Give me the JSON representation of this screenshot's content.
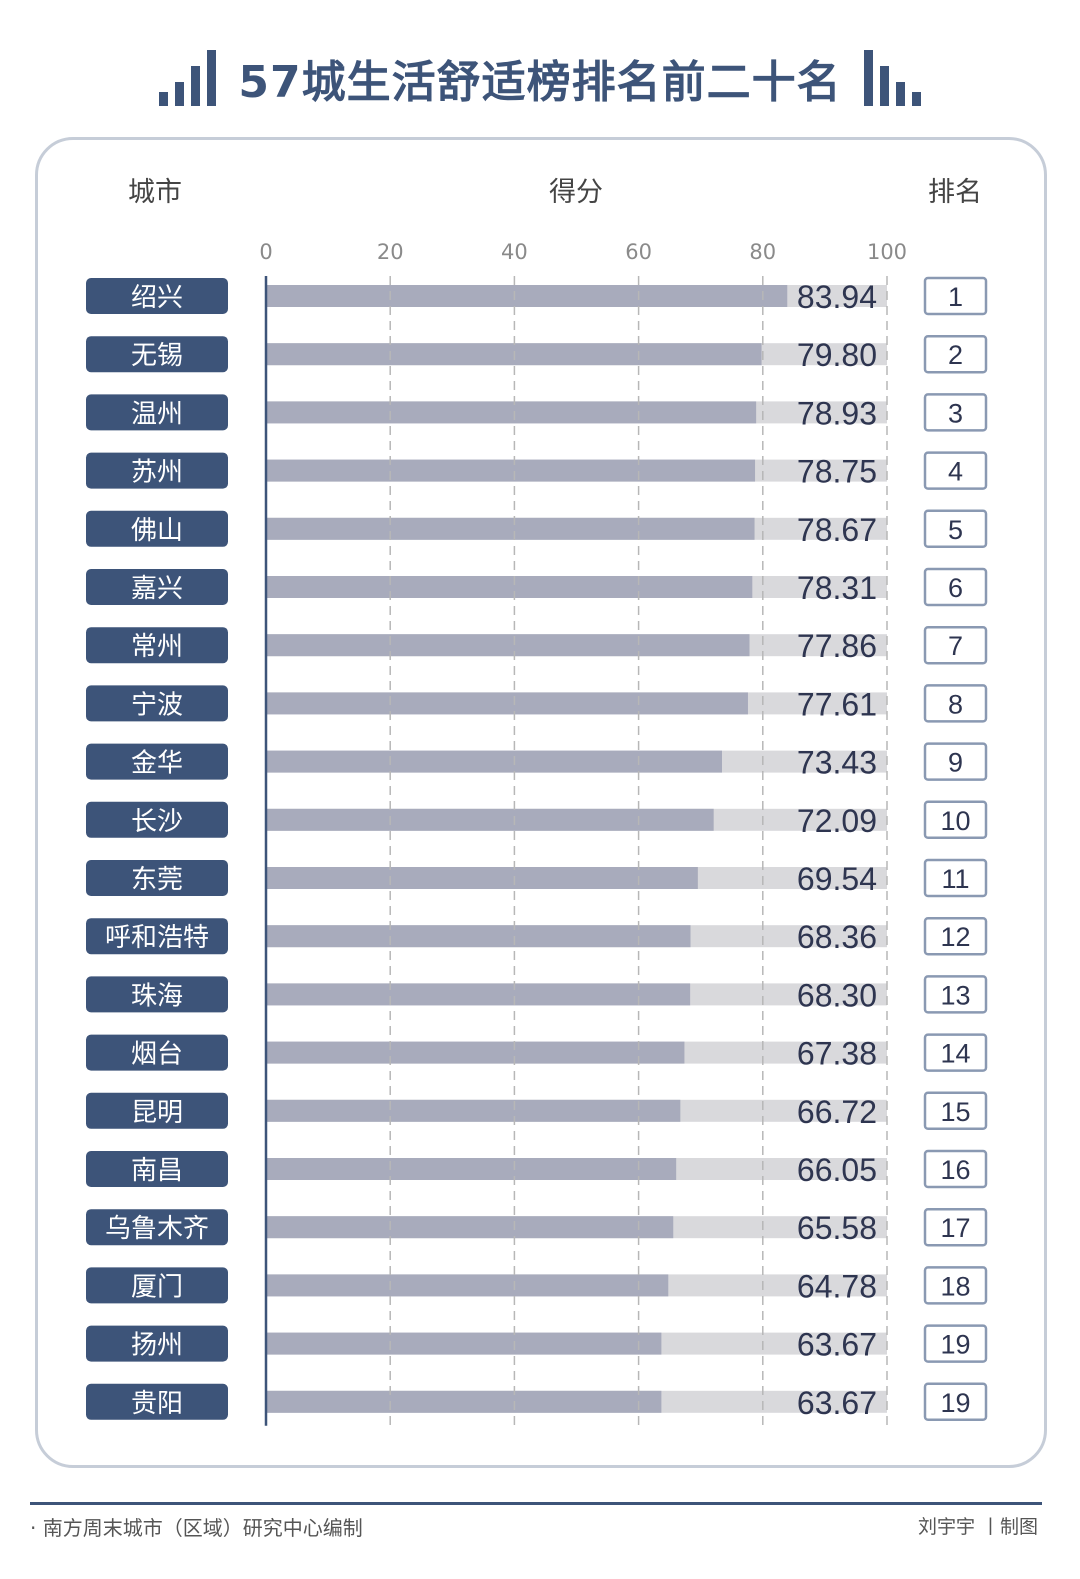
{
  "title": "57城生活舒适榜排名前二十名",
  "headers": {
    "city": "城市",
    "score": "得分",
    "rank": "排名"
  },
  "footer": {
    "source": "· 南方周末城市（区域）研究中心编制",
    "credit": "刘宇宇 丨制图"
  },
  "colors": {
    "accent": "#3d5479",
    "bar_fill": "#a8abbc",
    "bar_track": "#d9d9dc",
    "city_box": "#3d5479",
    "rank_border": "#8a99b2",
    "value_text": "#2e3550"
  },
  "chart_data": {
    "type": "bar",
    "orientation": "horizontal",
    "xlim": [
      0,
      100
    ],
    "xticks": [
      "0",
      "20",
      "40",
      "60",
      "80",
      "100"
    ],
    "grid": true,
    "categories": [
      "绍兴",
      "无锡",
      "温州",
      "苏州",
      "佛山",
      "嘉兴",
      "常州",
      "宁波",
      "金华",
      "长沙",
      "东莞",
      "呼和浩特",
      "珠海",
      "烟台",
      "昆明",
      "南昌",
      "乌鲁木齐",
      "厦门",
      "扬州",
      "贵阳"
    ],
    "values": [
      83.94,
      79.8,
      78.93,
      78.75,
      78.67,
      78.31,
      77.86,
      77.61,
      73.43,
      72.09,
      69.54,
      68.36,
      68.3,
      67.38,
      66.72,
      66.05,
      65.58,
      64.78,
      63.67,
      63.67
    ],
    "value_labels": [
      "83.94",
      "79.80",
      "78.93",
      "78.75",
      "78.67",
      "78.31",
      "77.86",
      "77.61",
      "73.43",
      "72.09",
      "69.54",
      "68.36",
      "68.30",
      "67.38",
      "66.72",
      "66.05",
      "65.58",
      "64.78",
      "63.67",
      "63.67"
    ],
    "ranks": [
      "1",
      "2",
      "3",
      "4",
      "5",
      "6",
      "7",
      "8",
      "9",
      "10",
      "11",
      "12",
      "13",
      "14",
      "15",
      "16",
      "17",
      "18",
      "19",
      "19"
    ]
  }
}
